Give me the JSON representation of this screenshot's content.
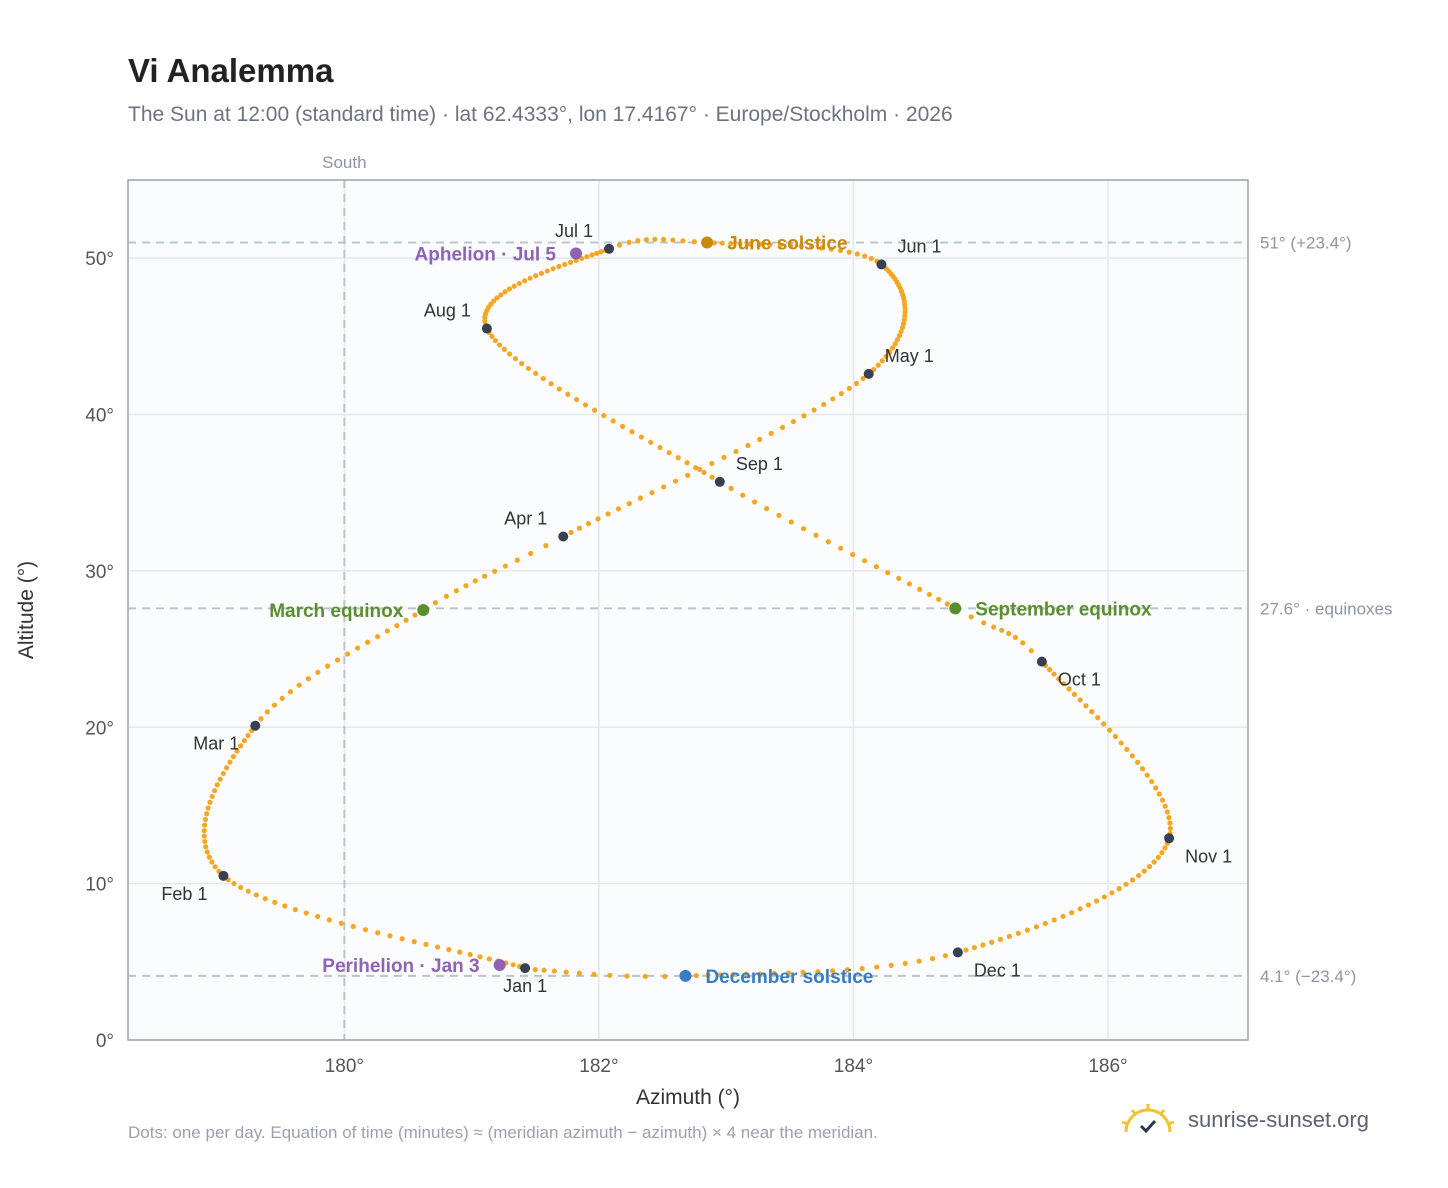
{
  "header": {
    "title": "Vi Analemma",
    "subtitle": "The Sun at 12:00 (standard time) · lat 62.4333°, lon 17.4167° · Europe/Stockholm · 2026"
  },
  "footer": {
    "note": "Dots: one per day. Equation of time (minutes) ≈ (meridian azimuth − azimuth) × 4 near the meridian.",
    "brand": "sunrise-sunset.org"
  },
  "colors": {
    "curve": "#f5a623",
    "month_marker": "#374151",
    "solstice_june": "#c98a0c",
    "solstice_december": "#3a7cc0",
    "equinox": "#5a8f2f",
    "apsis": "#8e63b5",
    "reference_line": "#b9c4cc",
    "plot_background": "#fafcfd"
  },
  "chart_data": {
    "type": "scatter",
    "xlabel": "Azimuth (°)",
    "ylabel": "Altitude (°)",
    "xlim": [
      178.3,
      187.1
    ],
    "ylim": [
      0,
      55
    ],
    "xticks": [
      {
        "value": 180,
        "label": "180°"
      },
      {
        "value": 182,
        "label": "182°"
      },
      {
        "value": 184,
        "label": "184°"
      },
      {
        "value": 186,
        "label": "186°"
      }
    ],
    "yticks": [
      {
        "value": 0,
        "label": "0°"
      },
      {
        "value": 10,
        "label": "10°"
      },
      {
        "value": 20,
        "label": "20°"
      },
      {
        "value": 30,
        "label": "30°"
      },
      {
        "value": 40,
        "label": "40°"
      },
      {
        "value": 50,
        "label": "50°"
      }
    ],
    "grid": true,
    "south_line": {
      "azimuth": 180,
      "label": "South"
    },
    "reference_lines": [
      {
        "altitude": 51.0,
        "label": "51° (+23.4°)"
      },
      {
        "altitude": 27.6,
        "label": "27.6° · equinoxes"
      },
      {
        "altitude": 4.1,
        "label": "4.1° (−23.4°)"
      }
    ],
    "daily_path": [
      {
        "day": 1,
        "azimuth": 181.42,
        "altitude": 4.6
      },
      {
        "day": 32,
        "azimuth": 179.05,
        "altitude": 10.5
      },
      {
        "day": 60,
        "azimuth": 179.3,
        "altitude": 20.1
      },
      {
        "day": 79,
        "azimuth": 180.62,
        "altitude": 27.5
      },
      {
        "day": 91,
        "azimuth": 181.72,
        "altitude": 32.2
      },
      {
        "day": 121,
        "azimuth": 184.12,
        "altitude": 42.6
      },
      {
        "day": 152,
        "azimuth": 184.22,
        "altitude": 49.6
      },
      {
        "day": 172,
        "azimuth": 182.85,
        "altitude": 51.0
      },
      {
        "day": 182,
        "azimuth": 182.08,
        "altitude": 50.6
      },
      {
        "day": 213,
        "azimuth": 181.12,
        "altitude": 45.5
      },
      {
        "day": 244,
        "azimuth": 182.95,
        "altitude": 35.7
      },
      {
        "day": 265,
        "azimuth": 184.8,
        "altitude": 27.6
      },
      {
        "day": 274,
        "azimuth": 185.48,
        "altitude": 24.2
      },
      {
        "day": 305,
        "azimuth": 186.48,
        "altitude": 12.9
      },
      {
        "day": 335,
        "azimuth": 184.82,
        "altitude": 5.6
      },
      {
        "day": 355,
        "azimuth": 182.68,
        "altitude": 4.1
      },
      {
        "day": 365,
        "azimuth": 181.5,
        "altitude": 4.5
      }
    ],
    "month_markers": [
      {
        "label": "Jan 1",
        "azimuth": 181.42,
        "altitude": 4.6,
        "anchor": "below"
      },
      {
        "label": "Feb 1",
        "azimuth": 179.05,
        "altitude": 10.5,
        "anchor": "below-left"
      },
      {
        "label": "Mar 1",
        "azimuth": 179.3,
        "altitude": 20.1,
        "anchor": "below-left"
      },
      {
        "label": "Apr 1",
        "azimuth": 181.72,
        "altitude": 32.2,
        "anchor": "above-left"
      },
      {
        "label": "May 1",
        "azimuth": 184.12,
        "altitude": 42.6,
        "anchor": "above-right"
      },
      {
        "label": "Jun 1",
        "azimuth": 184.22,
        "altitude": 49.6,
        "anchor": "above-right"
      },
      {
        "label": "Jul 1",
        "azimuth": 182.08,
        "altitude": 50.6,
        "anchor": "above-left"
      },
      {
        "label": "Aug 1",
        "azimuth": 181.12,
        "altitude": 45.5,
        "anchor": "above-left"
      },
      {
        "label": "Sep 1",
        "azimuth": 182.95,
        "altitude": 35.7,
        "anchor": "above-right"
      },
      {
        "label": "Oct 1",
        "azimuth": 185.48,
        "altitude": 24.2,
        "anchor": "below-right"
      },
      {
        "label": "Nov 1",
        "azimuth": 186.48,
        "altitude": 12.9,
        "anchor": "below-right"
      },
      {
        "label": "Dec 1",
        "azimuth": 184.82,
        "altitude": 5.6,
        "anchor": "below-right"
      }
    ],
    "events": [
      {
        "label": "June solstice",
        "azimuth": 182.85,
        "altitude": 51.0,
        "kind": "solstice_june",
        "side": "right"
      },
      {
        "label": "December solstice",
        "azimuth": 182.68,
        "altitude": 4.1,
        "kind": "solstice_december",
        "side": "right"
      },
      {
        "label": "March equinox",
        "azimuth": 180.62,
        "altitude": 27.5,
        "kind": "equinox",
        "side": "left"
      },
      {
        "label": "September equinox",
        "azimuth": 184.8,
        "altitude": 27.6,
        "kind": "equinox",
        "side": "right"
      },
      {
        "label": "Aphelion · Jul 5",
        "azimuth": 181.82,
        "altitude": 50.3,
        "kind": "apsis",
        "side": "left"
      },
      {
        "label": "Perihelion · Jan 3",
        "azimuth": 181.22,
        "altitude": 4.8,
        "kind": "apsis",
        "side": "left"
      }
    ]
  }
}
